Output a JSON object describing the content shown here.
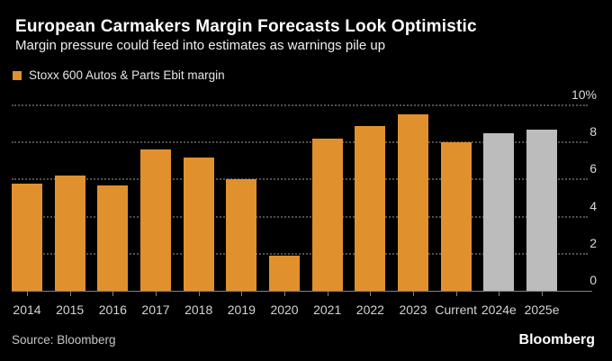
{
  "header": {
    "title": "European Carmakers Margin Forecasts Look Optimistic",
    "subtitle": "Margin pressure could feed into estimates as warnings pile up"
  },
  "legend": {
    "label": "Stoxx 600 Autos & Parts Ebit margin",
    "swatch_color": "#E0912D"
  },
  "chart_data": {
    "type": "bar",
    "title": "European Carmakers Margin Forecasts Look Optimistic",
    "subtitle": "Margin pressure could feed into estimates as warnings pile up",
    "series_name": "Stoxx 600 Autos & Parts Ebit margin",
    "categories": [
      "2014",
      "2015",
      "2016",
      "2017",
      "2018",
      "2019",
      "2020",
      "2021",
      "2022",
      "2023",
      "Current",
      "2024e",
      "2025e"
    ],
    "values": [
      5.8,
      6.2,
      5.7,
      7.6,
      7.2,
      6.0,
      1.9,
      8.2,
      8.9,
      9.5,
      8.0,
      8.5,
      8.7
    ],
    "bar_kinds": [
      "actual",
      "actual",
      "actual",
      "actual",
      "actual",
      "actual",
      "actual",
      "actual",
      "actual",
      "actual",
      "actual",
      "estimate",
      "estimate"
    ],
    "unit": "%",
    "ylim": [
      0,
      10
    ],
    "yticks": [
      {
        "v": 0,
        "label": "0"
      },
      {
        "v": 2,
        "label": "2"
      },
      {
        "v": 4,
        "label": "4"
      },
      {
        "v": 6,
        "label": "6"
      },
      {
        "v": 8,
        "label": "8"
      },
      {
        "v": 10,
        "label": "10%"
      }
    ],
    "grid": "dotted-horizontal",
    "legend_position": "top-left",
    "colors": {
      "actual": "#E0912D",
      "estimate": "#BCBCBC",
      "background": "#000000",
      "gridline": "#4F4F4F",
      "axis": "#828282",
      "tick_label": "#D8D8D8"
    }
  },
  "footer": {
    "source": "Source: Bloomberg",
    "brand": "Bloomberg"
  }
}
